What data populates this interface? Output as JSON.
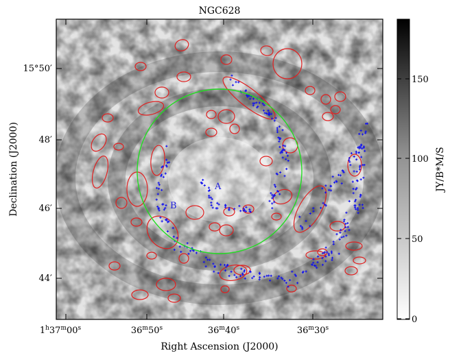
{
  "title": "NGC628",
  "xlabel": "Right Ascension (J2000)",
  "ylabel": "Declination (J2000)",
  "colorbar_label": "JY/B*M/S",
  "x_ticks": [
    {
      "h": "1",
      "hs": "h",
      "m": "37",
      "ms": "m",
      "s": "00",
      "ss": "s"
    },
    {
      "h": "",
      "hs": "",
      "m": "36",
      "ms": "m",
      "s": "50",
      "ss": "s"
    },
    {
      "h": "",
      "hs": "",
      "m": "36",
      "ms": "m",
      "s": "40",
      "ss": "s"
    },
    {
      "h": "",
      "hs": "",
      "m": "36",
      "ms": "m",
      "s": "30",
      "ss": "s"
    }
  ],
  "y_ticks": [
    {
      "label": "15°50′"
    },
    {
      "label": "48′"
    },
    {
      "label": "46′"
    },
    {
      "label": "44′"
    }
  ],
  "colorbar_ticks": [
    "150",
    "100",
    "50",
    "0"
  ],
  "annotations": {
    "a": "A",
    "b": "B"
  },
  "colors": {
    "ellipse": "#e02020",
    "circle": "#22dd22",
    "points": "#1010ee",
    "annotation": "#2020dd"
  }
}
